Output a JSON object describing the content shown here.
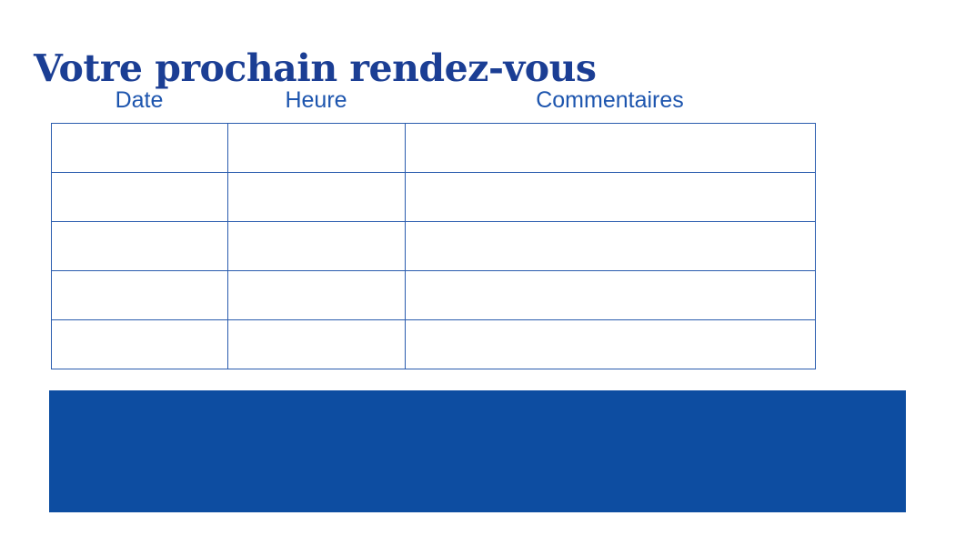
{
  "page": {
    "title": "Votre prochain rendez-vous"
  },
  "table": {
    "columns": [
      {
        "key": "date",
        "label": "Date"
      },
      {
        "key": "heure",
        "label": "Heure"
      },
      {
        "key": "commentaires",
        "label": "Commentaires"
      }
    ],
    "rows": [
      {
        "cells": [
          "",
          "",
          ""
        ]
      },
      {
        "cells": [
          "",
          "",
          ""
        ]
      },
      {
        "cells": [
          "",
          "",
          ""
        ]
      },
      {
        "cells": [
          "",
          "",
          ""
        ]
      },
      {
        "cells": [
          "",
          "",
          ""
        ]
      }
    ]
  },
  "colors": {
    "title_text": "#1b3e94",
    "header_text": "#1d55ae",
    "table_border": "#2a5cae",
    "footer_block": "#0d4da1",
    "background": "#ffffff"
  }
}
